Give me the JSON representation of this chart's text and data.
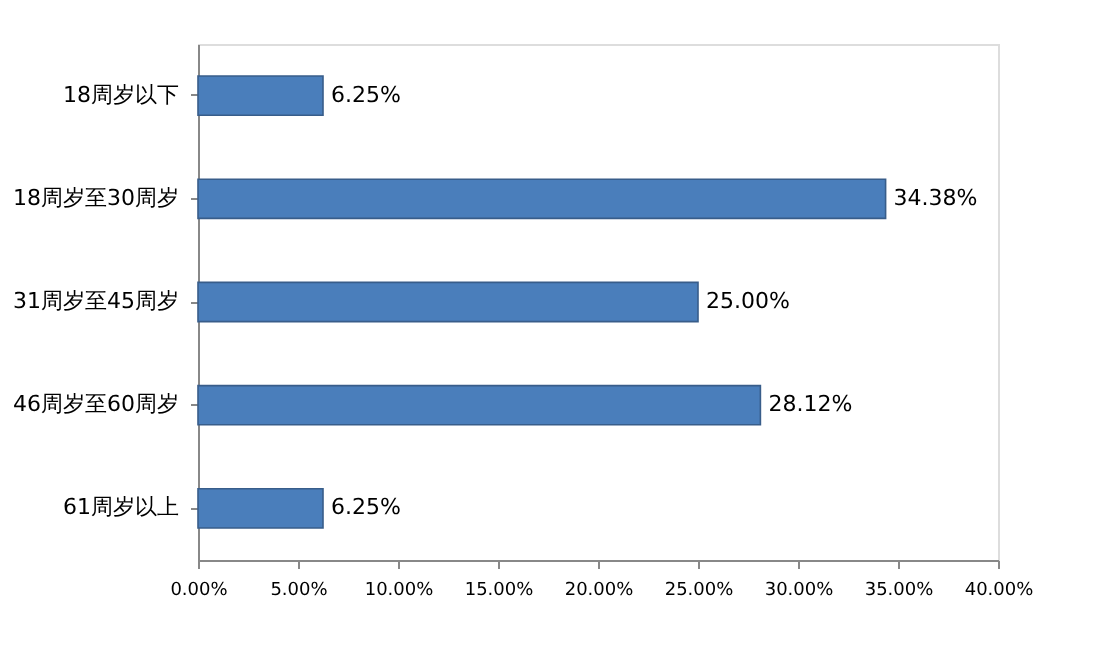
{
  "chart_data": {
    "type": "bar",
    "orientation": "horizontal",
    "categories": [
      "18周岁以下",
      "18周岁至30周岁",
      "31周岁至45周岁",
      "46周岁至60周岁",
      "61周岁以上"
    ],
    "values": [
      6.25,
      34.38,
      25.0,
      28.12,
      6.25
    ],
    "value_labels": [
      "6.25%",
      "34.38%",
      "25.00%",
      "28.12%",
      "6.25%"
    ],
    "color": "#4a7ebb",
    "xlim": [
      0,
      40
    ],
    "xticks": [
      {
        "value": 0,
        "label": "0.00%"
      },
      {
        "value": 5,
        "label": "5.00%"
      },
      {
        "value": 10,
        "label": "10.00%"
      },
      {
        "value": 15,
        "label": "15.00%"
      },
      {
        "value": 20,
        "label": "20.00%"
      },
      {
        "value": 25,
        "label": "25.00%"
      },
      {
        "value": 30,
        "label": "30.00%"
      },
      {
        "value": 35,
        "label": "35.00%"
      },
      {
        "value": 40,
        "label": "40.00%"
      }
    ],
    "grid": false
  }
}
